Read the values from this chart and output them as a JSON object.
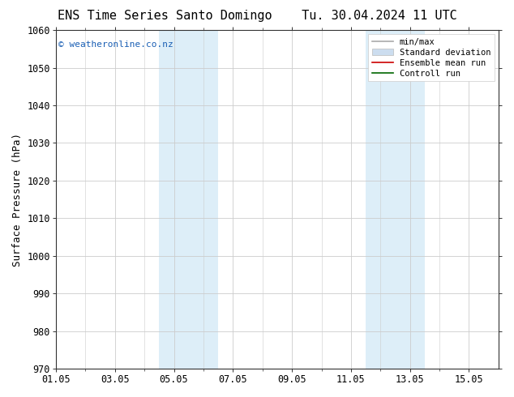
{
  "title_left": "ENS Time Series Santo Domingo",
  "title_right": "Tu. 30.04.2024 11 UTC",
  "ylabel": "Surface Pressure (hPa)",
  "ylim": [
    970,
    1060
  ],
  "yticks": [
    970,
    980,
    990,
    1000,
    1010,
    1020,
    1030,
    1040,
    1050,
    1060
  ],
  "xtick_labels": [
    "01.05",
    "03.05",
    "05.05",
    "07.05",
    "09.05",
    "11.05",
    "13.05",
    "15.05"
  ],
  "xtick_positions": [
    0,
    2,
    4,
    6,
    8,
    10,
    12,
    14
  ],
  "minor_xtick_positions": [
    1,
    3,
    5,
    7,
    9,
    11,
    13
  ],
  "xlim": [
    0,
    15
  ],
  "shaded_regions": [
    {
      "start": 3.5,
      "end": 5.0,
      "color": "#ddeef8"
    },
    {
      "start": 5.0,
      "end": 6.0,
      "color": "#ddeef8"
    },
    {
      "start": 10.5,
      "end": 11.5,
      "color": "#ddeef8"
    },
    {
      "start": 11.5,
      "end": 12.5,
      "color": "#ddeef8"
    }
  ],
  "watermark_text": "© weatheronline.co.nz",
  "watermark_color": "#1a5fb4",
  "legend_entries": [
    {
      "label": "min/max",
      "color": "#aaaaaa",
      "lw": 1.2,
      "ls": "-"
    },
    {
      "label": "Standard deviation",
      "color": "#ccddef",
      "lw": 5,
      "ls": "-"
    },
    {
      "label": "Ensemble mean run",
      "color": "#cc0000",
      "lw": 1.2,
      "ls": "-"
    },
    {
      "label": "Controll run",
      "color": "#006600",
      "lw": 1.2,
      "ls": "-"
    }
  ],
  "bg_color": "#ffffff",
  "plot_bg_color": "#ffffff",
  "grid_color": "#cccccc",
  "spine_color": "#333333",
  "title_fontsize": 11,
  "axis_label_fontsize": 9,
  "tick_fontsize": 8.5,
  "watermark_fontsize": 8,
  "legend_fontsize": 7.5
}
